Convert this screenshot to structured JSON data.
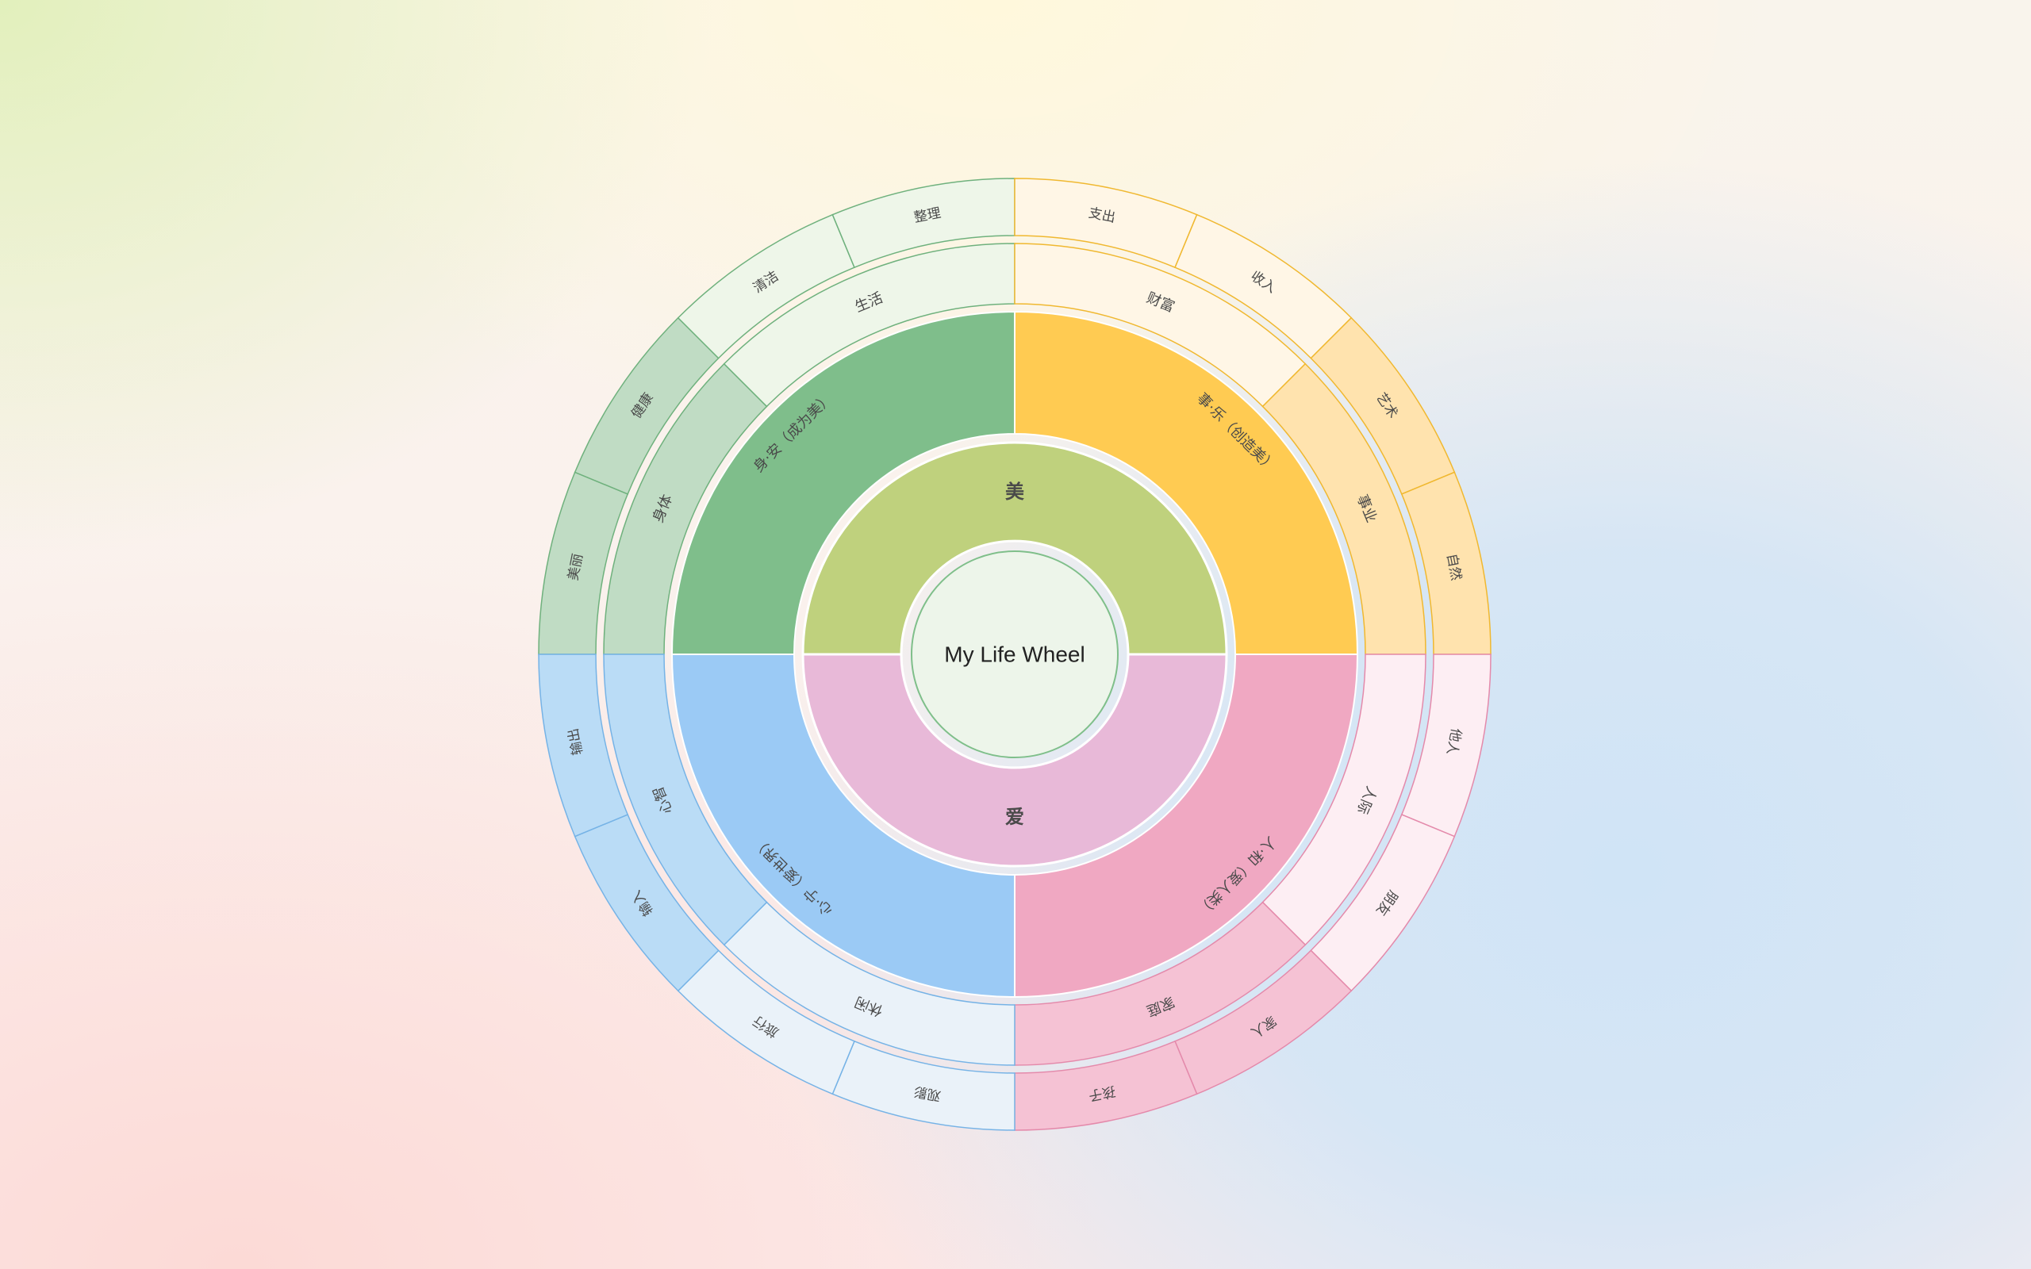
{
  "center": {
    "label": "My Life Wheel",
    "color": "#edf5ea",
    "stroke": "#7fbf8a"
  },
  "inner_ring": [
    {
      "label": "美",
      "color": "#bfd17d",
      "stroke": "#bfd17d"
    },
    {
      "label": "爱",
      "color": "#e8b9d8",
      "stroke": "#e8b9d8"
    }
  ],
  "quadrants": [
    {
      "id": "green",
      "label": "身·安（成为美）",
      "main_color": "#7fbe8b",
      "pale_color": "#eef6e9",
      "mid_color": "#c0dcc4",
      "stroke": "#6fb17d",
      "sub": [
        {
          "label": "身体",
          "fill": "mid",
          "items": [
            {
              "label": "美丽",
              "fill": "mid"
            },
            {
              "label": "健康",
              "fill": "mid"
            }
          ]
        },
        {
          "label": "生活",
          "fill": "pale",
          "items": [
            {
              "label": "清洁",
              "fill": "pale"
            },
            {
              "label": "整理",
              "fill": "pale"
            }
          ]
        }
      ]
    },
    {
      "id": "yellow",
      "label": "事·乐（创造美）",
      "main_color": "#ffcb52",
      "pale_color": "#fff6e6",
      "mid_color": "#ffe3ae",
      "stroke": "#f0b830",
      "sub": [
        {
          "label": "财富",
          "fill": "pale",
          "items": [
            {
              "label": "支出",
              "fill": "pale"
            },
            {
              "label": "收入",
              "fill": "pale"
            }
          ]
        },
        {
          "label": "事业",
          "fill": "mid",
          "items": [
            {
              "label": "艺术",
              "fill": "mid"
            },
            {
              "label": "自然",
              "fill": "mid"
            }
          ]
        }
      ]
    },
    {
      "id": "pink",
      "label": "人·和（爱人类）",
      "main_color": "#f0a8c2",
      "pale_color": "#fdeef3",
      "mid_color": "#f5c2d4",
      "stroke": "#e48aab",
      "sub": [
        {
          "label": "人际",
          "fill": "pale",
          "items": [
            {
              "label": "他人",
              "fill": "pale"
            },
            {
              "label": "朋友",
              "fill": "pale"
            }
          ]
        },
        {
          "label": "家庭",
          "fill": "mid",
          "items": [
            {
              "label": "家人",
              "fill": "mid"
            },
            {
              "label": "孩子",
              "fill": "mid"
            }
          ]
        }
      ]
    },
    {
      "id": "blue",
      "label": "心·宁（爱世界）",
      "main_color": "#9bcaf5",
      "pale_color": "#eaf2f9",
      "mid_color": "#badcf6",
      "stroke": "#76b3e6",
      "sub": [
        {
          "label": "休闲",
          "fill": "pale",
          "items": [
            {
              "label": "观影",
              "fill": "pale"
            },
            {
              "label": "旅行",
              "fill": "pale"
            }
          ]
        },
        {
          "label": "心智",
          "fill": "mid",
          "items": [
            {
              "label": "输入",
              "fill": "mid"
            },
            {
              "label": "输出",
              "fill": "mid"
            }
          ]
        }
      ]
    }
  ]
}
